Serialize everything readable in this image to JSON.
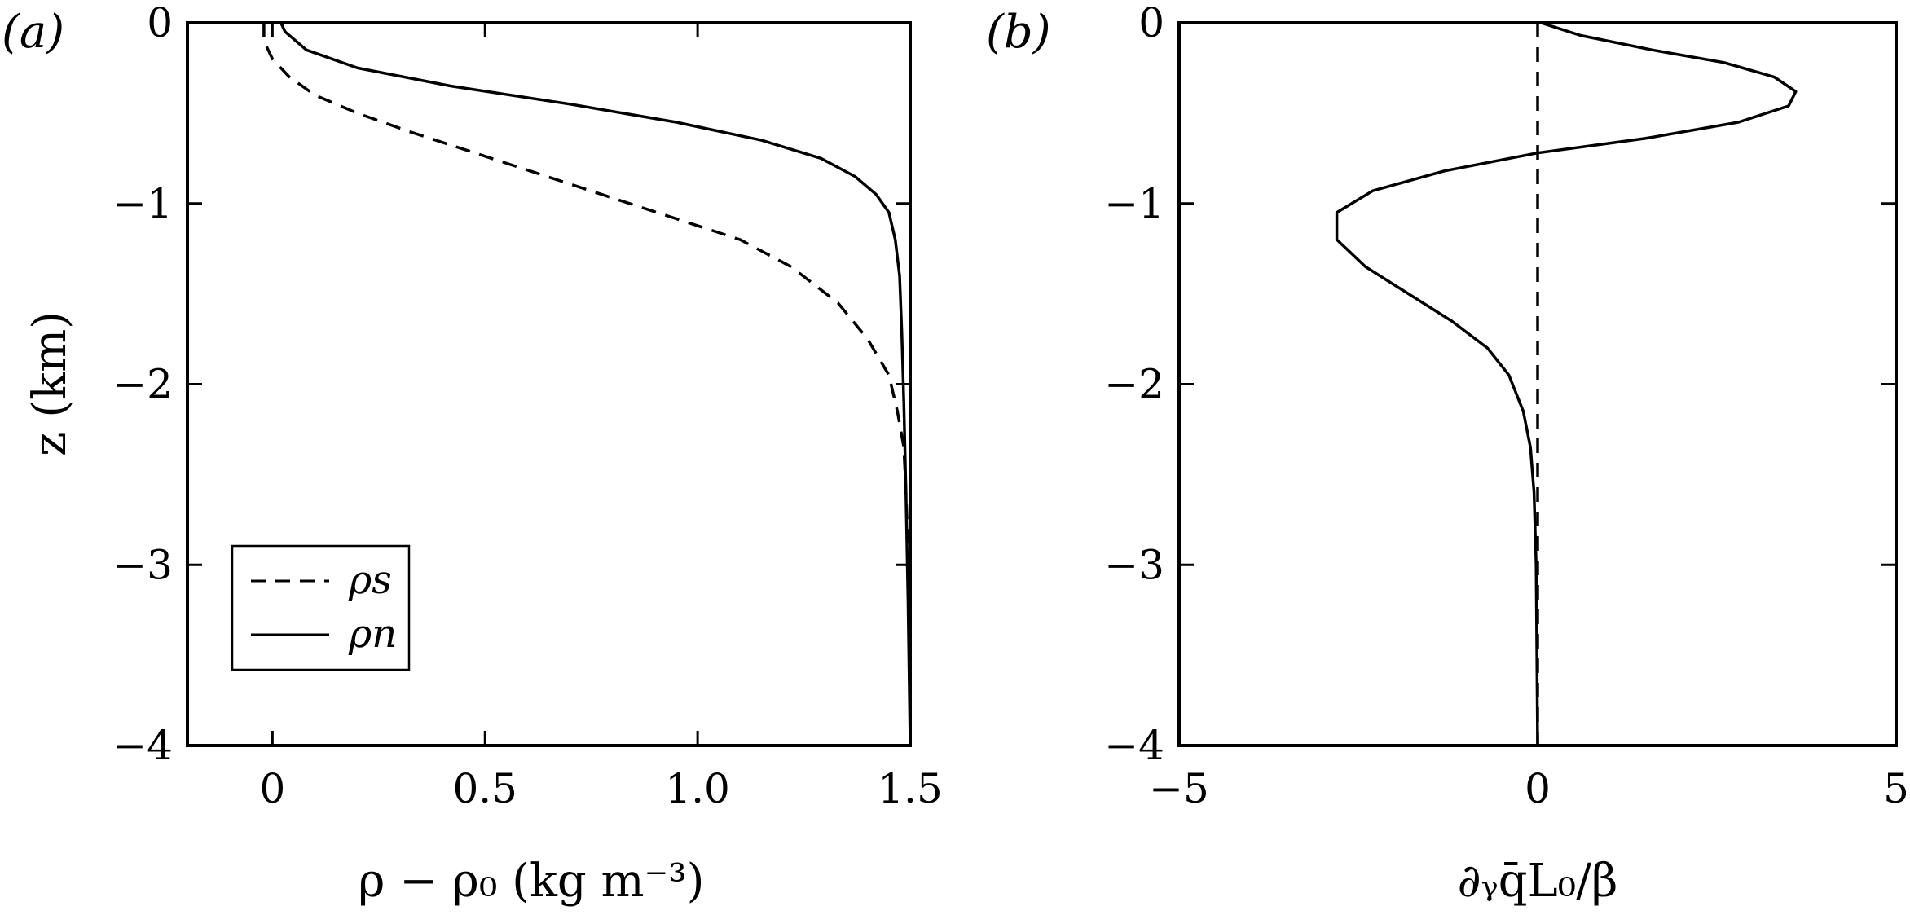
{
  "figure": {
    "panels": [
      {
        "label": "(a)",
        "xlabel": "ρ − ρ₀ (kg m⁻³)",
        "ylabel": "z (km)"
      },
      {
        "label": "(b)",
        "xlabel": "∂ᵧq̄L₀/β",
        "ylabel": ""
      }
    ]
  },
  "chart_data": [
    {
      "type": "line",
      "panel": "a",
      "title": "",
      "xlabel": "ρ − ρ₀ (kg m⁻³)",
      "ylabel": "z (km)",
      "xlim": [
        -0.2,
        1.5
      ],
      "ylim": [
        -4,
        0
      ],
      "xticks": [
        0,
        0.5,
        1.0,
        1.5
      ],
      "xtick_labels": [
        "0",
        "0.5",
        "1.0",
        "1.5"
      ],
      "yticks": [
        0,
        -1,
        -2,
        -3,
        -4
      ],
      "ytick_labels": [
        "0",
        "−1",
        "−2",
        "−3",
        "−4"
      ],
      "grid": false,
      "legend": "lower-left",
      "series": [
        {
          "name": "ρs",
          "style": "dashed",
          "color": "#000000",
          "x": [
            -0.02,
            -0.02,
            0.0,
            0.04,
            0.1,
            0.2,
            0.32,
            0.45,
            0.58,
            0.71,
            0.84,
            0.97,
            1.1,
            1.22,
            1.33,
            1.4,
            1.45,
            1.47,
            1.485,
            1.49,
            1.495,
            1.5,
            1.5
          ],
          "y": [
            0.0,
            -0.1,
            -0.2,
            -0.3,
            -0.4,
            -0.5,
            -0.6,
            -0.7,
            -0.8,
            -0.9,
            -1.0,
            -1.1,
            -1.2,
            -1.35,
            -1.55,
            -1.75,
            -1.95,
            -2.15,
            -2.35,
            -2.6,
            -2.9,
            -3.3,
            -4.0
          ]
        },
        {
          "name": "ρn",
          "style": "solid",
          "color": "#000000",
          "x": [
            0.02,
            0.03,
            0.08,
            0.2,
            0.42,
            0.7,
            0.95,
            1.15,
            1.29,
            1.37,
            1.42,
            1.45,
            1.465,
            1.475,
            1.48,
            1.485,
            1.49,
            1.495,
            1.5
          ],
          "y": [
            0.0,
            -0.05,
            -0.15,
            -0.25,
            -0.35,
            -0.45,
            -0.55,
            -0.65,
            -0.75,
            -0.85,
            -0.95,
            -1.05,
            -1.2,
            -1.4,
            -1.7,
            -2.1,
            -2.6,
            -3.2,
            -4.0
          ]
        }
      ]
    },
    {
      "type": "line",
      "panel": "b",
      "title": "",
      "xlabel": "∂ᵧq̄L₀/β",
      "ylabel": "",
      "xlim": [
        -5,
        5
      ],
      "ylim": [
        -4,
        0
      ],
      "xticks": [
        -5,
        0,
        5
      ],
      "xtick_labels": [
        "−5",
        "0",
        "5"
      ],
      "yticks": [
        0,
        -1,
        -2,
        -3,
        -4
      ],
      "ytick_labels": [
        "0",
        "−1",
        "−2",
        "−3",
        "−4"
      ],
      "grid": false,
      "legend": "none",
      "series": [
        {
          "name": "",
          "style": "solid",
          "color": "#000000",
          "x": [
            0.05,
            0.6,
            1.6,
            2.6,
            3.3,
            3.6,
            3.5,
            2.8,
            1.5,
            0.0,
            -1.3,
            -2.3,
            -2.8,
            -2.8,
            -2.4,
            -1.8,
            -1.2,
            -0.7,
            -0.4,
            -0.2,
            -0.1,
            -0.05,
            -0.02,
            0.0
          ],
          "y": [
            0.0,
            -0.07,
            -0.15,
            -0.22,
            -0.3,
            -0.38,
            -0.46,
            -0.55,
            -0.64,
            -0.72,
            -0.82,
            -0.93,
            -1.05,
            -1.2,
            -1.35,
            -1.5,
            -1.65,
            -1.8,
            -1.95,
            -2.15,
            -2.35,
            -2.6,
            -3.0,
            -4.0
          ]
        },
        {
          "name": "",
          "style": "dashed",
          "color": "#000000",
          "x": [
            0,
            0
          ],
          "y": [
            0,
            -4
          ]
        }
      ]
    }
  ]
}
